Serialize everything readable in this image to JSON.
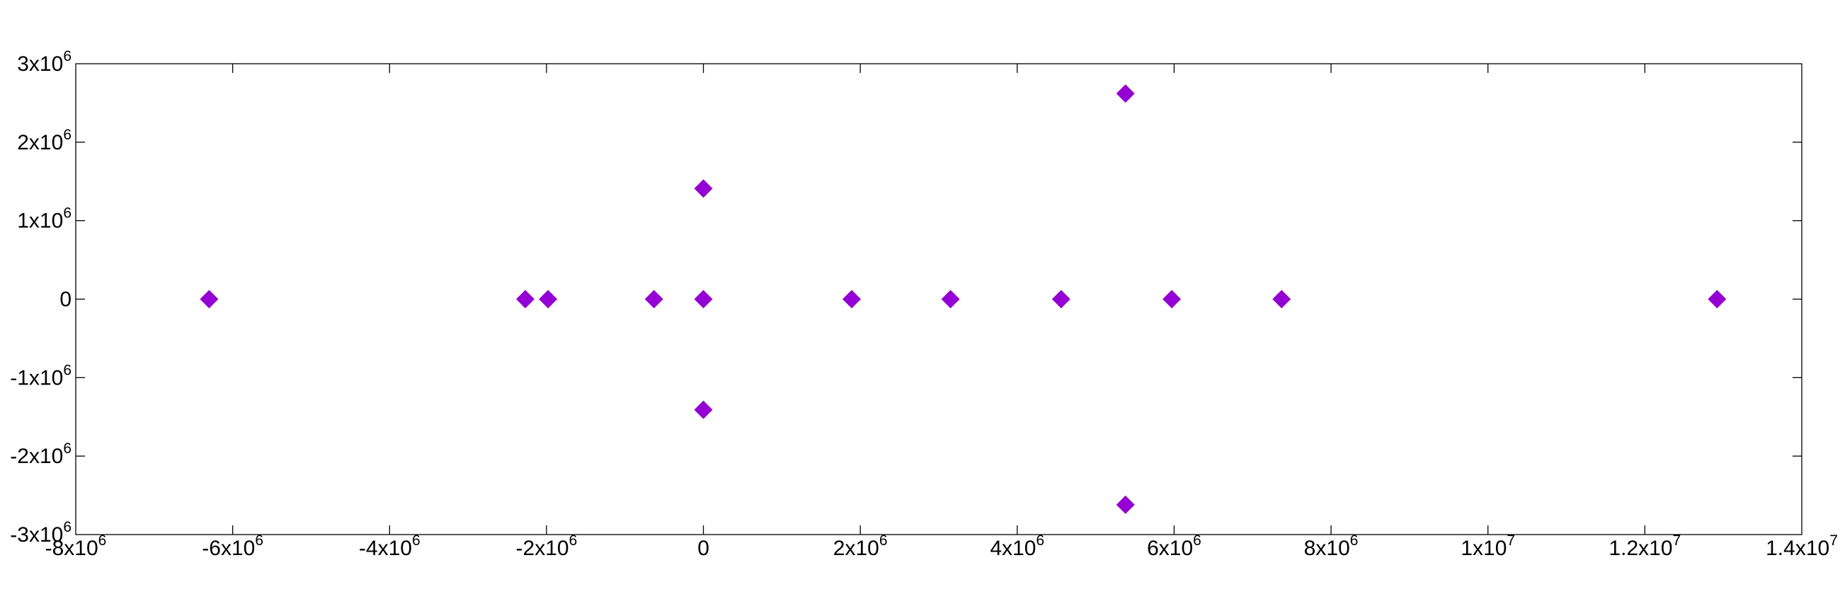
{
  "chart_data": {
    "type": "scatter",
    "title": "",
    "xlabel": "",
    "ylabel": "",
    "xlim": [
      -8000000,
      14000000
    ],
    "ylim": [
      -3000000,
      3000000
    ],
    "grid": false,
    "marker_color": "#9400d3",
    "marker": "diamond",
    "x_ticks": [
      {
        "value": -8000000,
        "base": "-8x10",
        "exp": "6"
      },
      {
        "value": -6000000,
        "base": "-6x10",
        "exp": "6"
      },
      {
        "value": -4000000,
        "base": "-4x10",
        "exp": "6"
      },
      {
        "value": -2000000,
        "base": "-2x10",
        "exp": "6"
      },
      {
        "value": 0,
        "base": "0",
        "exp": ""
      },
      {
        "value": 2000000,
        "base": "2x10",
        "exp": "6"
      },
      {
        "value": 4000000,
        "base": "4x10",
        "exp": "6"
      },
      {
        "value": 6000000,
        "base": "6x10",
        "exp": "6"
      },
      {
        "value": 8000000,
        "base": "8x10",
        "exp": "6"
      },
      {
        "value": 10000000,
        "base": "1x10",
        "exp": "7"
      },
      {
        "value": 12000000,
        "base": "1.2x10",
        "exp": "7"
      },
      {
        "value": 14000000,
        "base": "1.4x10",
        "exp": "7"
      }
    ],
    "y_ticks": [
      {
        "value": 3000000,
        "base": "3x10",
        "exp": "6"
      },
      {
        "value": 2000000,
        "base": "2x10",
        "exp": "6"
      },
      {
        "value": 1000000,
        "base": "1x10",
        "exp": "6"
      },
      {
        "value": 0,
        "base": "0",
        "exp": ""
      },
      {
        "value": -1000000,
        "base": "-1x10",
        "exp": "6"
      },
      {
        "value": -2000000,
        "base": "-2x10",
        "exp": "6"
      },
      {
        "value": -3000000,
        "base": "-3x10",
        "exp": "6"
      }
    ],
    "points": [
      {
        "x": -6300000,
        "y": 0
      },
      {
        "x": -2270000,
        "y": 0
      },
      {
        "x": -1980000,
        "y": 0
      },
      {
        "x": -630000,
        "y": 0
      },
      {
        "x": 0,
        "y": 0
      },
      {
        "x": 0,
        "y": 1410000
      },
      {
        "x": 0,
        "y": -1410000
      },
      {
        "x": 1890000,
        "y": 0
      },
      {
        "x": 3150000,
        "y": 0
      },
      {
        "x": 4560000,
        "y": 0
      },
      {
        "x": 5380000,
        "y": 2620000
      },
      {
        "x": 5380000,
        "y": -2620000
      },
      {
        "x": 5970000,
        "y": 0
      },
      {
        "x": 7370000,
        "y": 0
      },
      {
        "x": 12920000,
        "y": 0
      }
    ]
  }
}
